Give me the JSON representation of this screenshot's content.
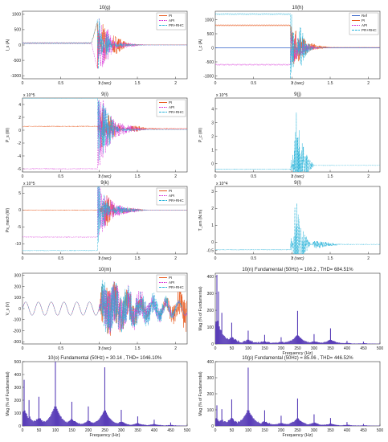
{
  "figure": {
    "panels": [
      {
        "id": "g",
        "title": "10(g)",
        "ylabel": "I_s (A)",
        "xlabel": "t (sec)",
        "kind": "time",
        "yticks": [
          "1000",
          "500",
          "0",
          "-500",
          "-1000"
        ],
        "xticks": [
          "0",
          "0.5",
          "1",
          "1.5",
          "2"
        ],
        "exp": "",
        "legend": [
          "PI",
          "API",
          "PR+RHC"
        ]
      },
      {
        "id": "h",
        "title": "10(h)",
        "ylabel": "I_c (A)",
        "xlabel": "t (sec)",
        "kind": "time",
        "yticks": [
          "1000",
          "500",
          "0",
          "-500",
          "-1000"
        ],
        "xticks": [
          "0",
          "0.5",
          "1",
          "1.5",
          "2"
        ],
        "exp": "",
        "legend": [
          "Ref",
          "PI",
          "API",
          "PR+RHC"
        ]
      },
      {
        "id": "i",
        "title": "9(i)",
        "ylabel": "P_s (W)",
        "xlabel": "t (sec)",
        "kind": "time",
        "yticks": [
          "4",
          "2",
          "0",
          "-2",
          "-4",
          "-6"
        ],
        "xticks": [
          "0",
          "0.5",
          "1",
          "1.5",
          "2"
        ],
        "exp": "x 10^5",
        "legend": [
          "PI",
          "API",
          "PR+RHC"
        ]
      },
      {
        "id": "j",
        "title": "9(j)",
        "ylabel": "P_c (W)",
        "xlabel": "t (sec)",
        "kind": "time",
        "yticks": [
          "4",
          "3",
          "2",
          "1",
          "0"
        ],
        "xticks": [
          "0",
          "0.5",
          "1",
          "1.5",
          "2"
        ],
        "exp": "x 10^5",
        "legend": []
      },
      {
        "id": "k",
        "title": "9(k)",
        "ylabel": "Ps_mech (W)",
        "xlabel": "t (sec)",
        "kind": "time",
        "yticks": [
          "5",
          "0",
          "-5",
          "-10"
        ],
        "xticks": [
          "0",
          "0.5",
          "1",
          "1.5",
          "2"
        ],
        "exp": "x 10^5",
        "legend": [
          "PI",
          "API",
          "PR+RHC"
        ]
      },
      {
        "id": "l",
        "title": "9(l)",
        "ylabel": "T_em (N.m)",
        "xlabel": "t (sec)",
        "kind": "time",
        "yticks": [
          "3",
          "2",
          "1",
          "0",
          "-0.5"
        ],
        "xticks": [
          "0",
          "0.5",
          "1",
          "1.5",
          "2"
        ],
        "exp": "x 10^4",
        "legend": []
      },
      {
        "id": "m",
        "title": "10(m)",
        "ylabel": "V_s (V)",
        "xlabel": "t (sec)",
        "kind": "time",
        "yticks": [
          "300",
          "200",
          "100",
          "0",
          "-100",
          "-200",
          "-300"
        ],
        "xticks": [
          "0",
          "0.5",
          "1",
          "1.5",
          "2"
        ],
        "exp": "",
        "legend": [
          "PI",
          "API",
          "PR+RHC"
        ]
      },
      {
        "id": "n",
        "title": "10(n) Fundamental (50Hz) = 106.2 , THD= 684.51%",
        "ylabel": "Mag (% of Fundamental)",
        "xlabel": "Frequency (Hz)",
        "kind": "spectrum",
        "yticks": [
          "400",
          "300",
          "200",
          "100",
          "0"
        ],
        "xticks": [
          "0",
          "50",
          "100",
          "150",
          "200",
          "250",
          "300",
          "350",
          "400",
          "450",
          "500"
        ],
        "exp": "",
        "legend": []
      },
      {
        "id": "o",
        "title": "10(o)  Fundamental (50Hz) = 30.14 , THD= 1046.10%",
        "ylabel": "Mag (% of Fundamental)",
        "xlabel": "Frequency (Hz)",
        "kind": "spectrum",
        "yticks": [
          "500",
          "400",
          "300",
          "200",
          "100",
          "0"
        ],
        "xticks": [
          "0",
          "50",
          "100",
          "150",
          "200",
          "250",
          "300",
          "350",
          "400",
          "450",
          "500"
        ],
        "exp": "",
        "legend": []
      },
      {
        "id": "p",
        "title": "10(p)  Fundamental (50Hz) = 85.06 , THD= 446.52%",
        "ylabel": "Mag (% of Fundamental)",
        "xlabel": "Frequency (Hz)",
        "kind": "spectrum",
        "yticks": [
          "400",
          "300",
          "200",
          "100",
          "0"
        ],
        "xticks": [
          "0",
          "50",
          "100",
          "150",
          "200",
          "250",
          "300",
          "350",
          "400",
          "450",
          "500"
        ],
        "exp": "",
        "legend": []
      }
    ]
  },
  "colors": {
    "PI": "#e8581c",
    "API": "#d62fd6",
    "PR+RHC": "#2ab3d9",
    "Ref": "#3060c8",
    "bar": "#5a3fb8",
    "axis": "#222222"
  },
  "chart_data": [
    {
      "type": "line",
      "title": "10(g)",
      "xlabel": "t (sec)",
      "ylabel": "I_s (A)",
      "xlim": [
        0,
        2.15
      ],
      "ylim": [
        -1100,
        1100
      ],
      "series": [
        {
          "name": "PI",
          "points": [
            [
              0,
              60
            ],
            [
              0.9,
              60
            ],
            [
              1.0,
              900
            ],
            [
              1.05,
              -900
            ],
            [
              1.2,
              500
            ],
            [
              1.4,
              100
            ],
            [
              2.15,
              20
            ]
          ]
        },
        {
          "name": "API",
          "points": [
            [
              0,
              60
            ],
            [
              0.9,
              60
            ],
            [
              1.0,
              -1000
            ],
            [
              1.1,
              -700
            ],
            [
              1.2,
              -200
            ],
            [
              2.15,
              0
            ]
          ]
        },
        {
          "name": "PR+RHC",
          "points": [
            [
              0,
              60
            ],
            [
              0.9,
              60
            ],
            [
              1.0,
              1000
            ],
            [
              1.1,
              -500
            ],
            [
              1.2,
              100
            ],
            [
              2.15,
              0
            ]
          ]
        }
      ]
    },
    {
      "type": "line",
      "title": "10(h)",
      "xlabel": "t (sec)",
      "ylabel": "I_c (A)",
      "xlim": [
        0,
        2.15
      ],
      "ylim": [
        -1100,
        1300
      ],
      "series": [
        {
          "name": "Ref",
          "points": [
            [
              0,
              0
            ],
            [
              2.15,
              0
            ]
          ]
        },
        {
          "name": "PI",
          "points": [
            [
              1.0,
              800
            ],
            [
              1.2,
              300
            ],
            [
              1.5,
              50
            ]
          ]
        },
        {
          "name": "API",
          "points": [
            [
              1.0,
              -600
            ],
            [
              1.2,
              -200
            ],
            [
              1.4,
              0
            ]
          ]
        },
        {
          "name": "PR+RHC",
          "points": [
            [
              1.0,
              1200
            ],
            [
              1.1,
              -1000
            ],
            [
              1.2,
              -300
            ],
            [
              1.3,
              0
            ]
          ]
        }
      ]
    },
    {
      "type": "line",
      "title": "9(i)",
      "xlabel": "t (sec)",
      "ylabel": "P_s (W)",
      "exp": "x 10^5",
      "xlim": [
        0,
        2.15
      ],
      "ylim": [
        -6.5,
        5
      ],
      "series": [
        {
          "name": "PI",
          "points": [
            [
              0,
              0.6
            ],
            [
              1.0,
              0.6
            ],
            [
              1.05,
              4.5
            ],
            [
              1.1,
              -3
            ],
            [
              1.5,
              2
            ],
            [
              2.15,
              0.8
            ]
          ]
        },
        {
          "name": "API",
          "points": [
            [
              1.0,
              -6
            ],
            [
              1.2,
              -2
            ],
            [
              2.15,
              0.5
            ]
          ]
        },
        {
          "name": "PR+RHC",
          "points": [
            [
              1.0,
              5
            ],
            [
              1.05,
              -5
            ],
            [
              1.3,
              0.5
            ],
            [
              2.15,
              0.2
            ]
          ]
        }
      ]
    },
    {
      "type": "line",
      "title": "9(j)",
      "xlabel": "t (sec)",
      "ylabel": "P_c (W)",
      "exp": "x 10^5",
      "xlim": [
        0,
        2.15
      ],
      "ylim": [
        -0.6,
        4.8
      ],
      "series": [
        {
          "name": "PR+RHC",
          "points": [
            [
              0,
              -0.4
            ],
            [
              1.0,
              -0.4
            ],
            [
              1.05,
              4.6
            ],
            [
              1.1,
              3
            ],
            [
              1.2,
              1
            ],
            [
              1.3,
              0
            ],
            [
              2.15,
              -0.4
            ]
          ]
        }
      ]
    },
    {
      "type": "line",
      "title": "9(k)",
      "xlabel": "t (sec)",
      "ylabel": "Ps_mech (W)",
      "exp": "x 10^5",
      "xlim": [
        0,
        2.15
      ],
      "ylim": [
        -13,
        7
      ],
      "series": [
        {
          "name": "PI",
          "points": [
            [
              0,
              0
            ],
            [
              1.0,
              0
            ],
            [
              1.1,
              -6
            ],
            [
              1.3,
              2
            ],
            [
              2.15,
              0
            ]
          ]
        },
        {
          "name": "API",
          "points": [
            [
              1.0,
              -8
            ],
            [
              1.2,
              -3
            ],
            [
              2.15,
              0
            ]
          ]
        },
        {
          "name": "PR+RHC",
          "points": [
            [
              1.0,
              -12
            ],
            [
              1.05,
              6
            ],
            [
              1.2,
              -2
            ],
            [
              2.15,
              0
            ]
          ]
        }
      ]
    },
    {
      "type": "line",
      "title": "9(l)",
      "xlabel": "t (sec)",
      "ylabel": "T_em (N.m)",
      "exp": "x 10^4",
      "xlim": [
        0,
        2.15
      ],
      "ylim": [
        -0.7,
        3.3
      ],
      "series": [
        {
          "name": "PR+RHC",
          "points": [
            [
              0,
              -0.45
            ],
            [
              1.0,
              -0.45
            ],
            [
              1.05,
              3.1
            ],
            [
              1.1,
              2
            ],
            [
              1.2,
              0.5
            ],
            [
              1.3,
              -0.45
            ],
            [
              2.15,
              -0.45
            ]
          ]
        }
      ]
    },
    {
      "type": "line",
      "title": "10(m)",
      "xlabel": "t (sec)",
      "ylabel": "V_s (V)",
      "xlim": [
        0,
        2.15
      ],
      "ylim": [
        -320,
        320
      ],
      "series": [
        {
          "name": "PI",
          "points": [
            [
              0,
              0
            ],
            [
              1.0,
              0
            ],
            [
              1.05,
              300
            ],
            [
              1.1,
              -300
            ],
            [
              2.15,
              200
            ]
          ]
        },
        {
          "name": "API",
          "points": [
            [
              0,
              -30
            ],
            [
              1.0,
              -30
            ],
            [
              1.1,
              -280
            ],
            [
              2.15,
              20
            ]
          ]
        },
        {
          "name": "PR+RHC",
          "points": [
            [
              0,
              -30
            ],
            [
              1.0,
              -30
            ],
            [
              1.05,
              280
            ],
            [
              2.15,
              0
            ]
          ]
        }
      ]
    },
    {
      "type": "bar",
      "title": "10(n) Fundamental (50Hz) = 106.2 , THD= 684.51%",
      "xlabel": "Frequency (Hz)",
      "ylabel": "Mag (% of Fundamental)",
      "xlim": [
        0,
        500
      ],
      "ylim": [
        0,
        420
      ],
      "peaks": [
        [
          5,
          410
        ],
        [
          10,
          300
        ],
        [
          20,
          180
        ],
        [
          50,
          100
        ],
        [
          100,
          60
        ],
        [
          150,
          40
        ],
        [
          200,
          30
        ],
        [
          250,
          160
        ],
        [
          300,
          45
        ],
        [
          350,
          75
        ],
        [
          400,
          15
        ],
        [
          450,
          10
        ]
      ]
    },
    {
      "type": "bar",
      "title": "10(o)  Fundamental (50Hz) = 30.14 , THD= 1046.10%",
      "xlabel": "Frequency (Hz)",
      "ylabel": "Mag (% of Fundamental)",
      "xlim": [
        0,
        500
      ],
      "ylim": [
        0,
        500
      ],
      "peaks": [
        [
          5,
          350
        ],
        [
          20,
          200
        ],
        [
          50,
          180
        ],
        [
          100,
          480
        ],
        [
          150,
          150
        ],
        [
          200,
          120
        ],
        [
          250,
          380
        ],
        [
          300,
          100
        ],
        [
          350,
          60
        ],
        [
          400,
          40
        ],
        [
          450,
          20
        ]
      ]
    },
    {
      "type": "bar",
      "title": "10(p)  Fundamental (50Hz) = 85.06 , THD= 446.52%",
      "xlabel": "Frequency (Hz)",
      "ylabel": "Mag (% of Fundamental)",
      "xlim": [
        0,
        500
      ],
      "ylim": [
        0,
        400
      ],
      "peaks": [
        [
          5,
          120
        ],
        [
          20,
          100
        ],
        [
          50,
          130
        ],
        [
          100,
          300
        ],
        [
          150,
          80
        ],
        [
          200,
          50
        ],
        [
          250,
          140
        ],
        [
          300,
          60
        ],
        [
          350,
          40
        ],
        [
          400,
          20
        ],
        [
          450,
          10
        ]
      ]
    }
  ]
}
